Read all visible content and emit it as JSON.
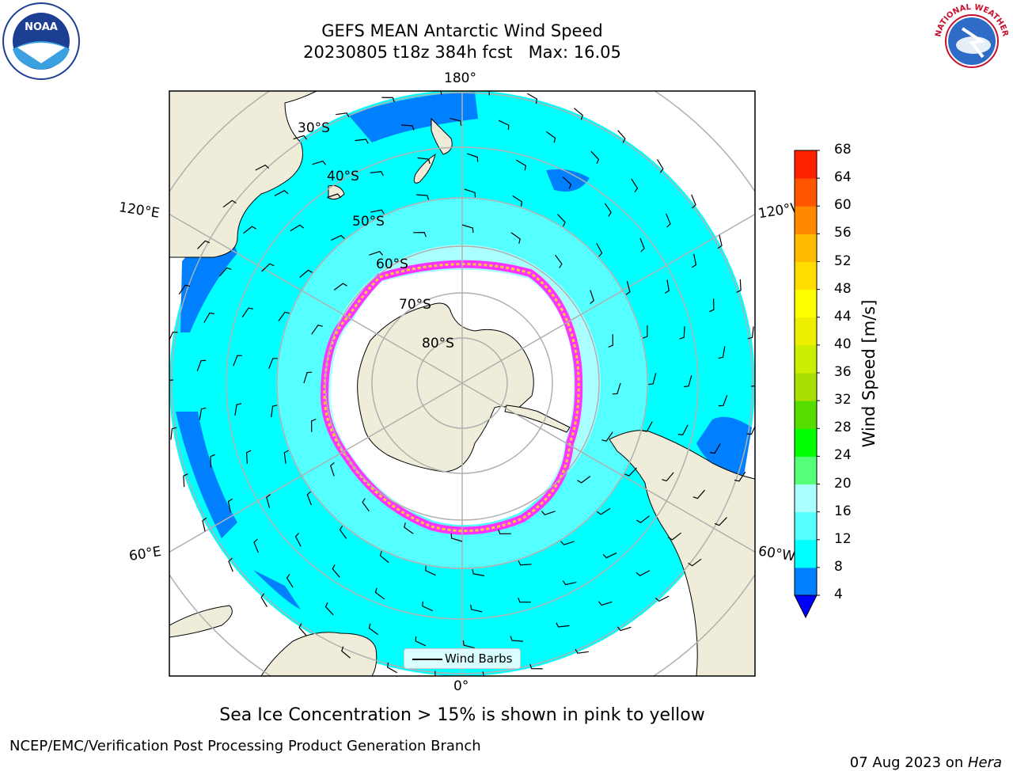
{
  "header": {
    "title_line1": "GEFS MEAN Antarctic Wind Speed",
    "title_line2": "20230805 t18z 384h fcst   Max: 16.05"
  },
  "logos": {
    "noaa_text": "NOAA",
    "nws_text": "NATIONAL WEATHER SERVICE"
  },
  "map": {
    "projection": "south polar stereographic",
    "longitude_labels": {
      "top": "180°",
      "bottom": "0°",
      "upper_left": "120°E",
      "lower_left": "60°E",
      "upper_right": "120°W",
      "lower_right": "60°W"
    },
    "latitude_labels": [
      "30°S",
      "40°S",
      "50°S",
      "60°S",
      "70°S",
      "80°S"
    ],
    "land_color": "#efedda",
    "ocean_colors": {
      "4_8": "#0080ff",
      "8_12": "#00ffff",
      "12_16": "#55ffff",
      "16_20": "#aaffff"
    },
    "sea_ice_colors": [
      "#ff33ff",
      "#ff88aa",
      "#ffcc33"
    ],
    "legend_label": "Wind Barbs"
  },
  "colorbar": {
    "label": "Wind Speed [m/s]",
    "ticks": [
      "4",
      "8",
      "12",
      "16",
      "20",
      "24",
      "28",
      "32",
      "36",
      "40",
      "44",
      "48",
      "52",
      "56",
      "60",
      "64",
      "68"
    ],
    "colors": [
      "#0080ff",
      "#00ffff",
      "#55ffff",
      "#aaffff",
      "#55ff77",
      "#00ff00",
      "#55dd00",
      "#aadd00",
      "#ccee00",
      "#eeee00",
      "#ffff00",
      "#ffdd00",
      "#ffbb00",
      "#ff8800",
      "#ff5500",
      "#ff2200",
      "#ff0000"
    ],
    "extend_color": "#0000ff"
  },
  "caption": "Sea Ice Concentration > 15% is shown in pink to yellow",
  "footer": {
    "left": "NCEP/EMC/Verification Post Processing Product Generation Branch",
    "right_date": "07 Aug 2023 on ",
    "right_machine": "Hera"
  }
}
